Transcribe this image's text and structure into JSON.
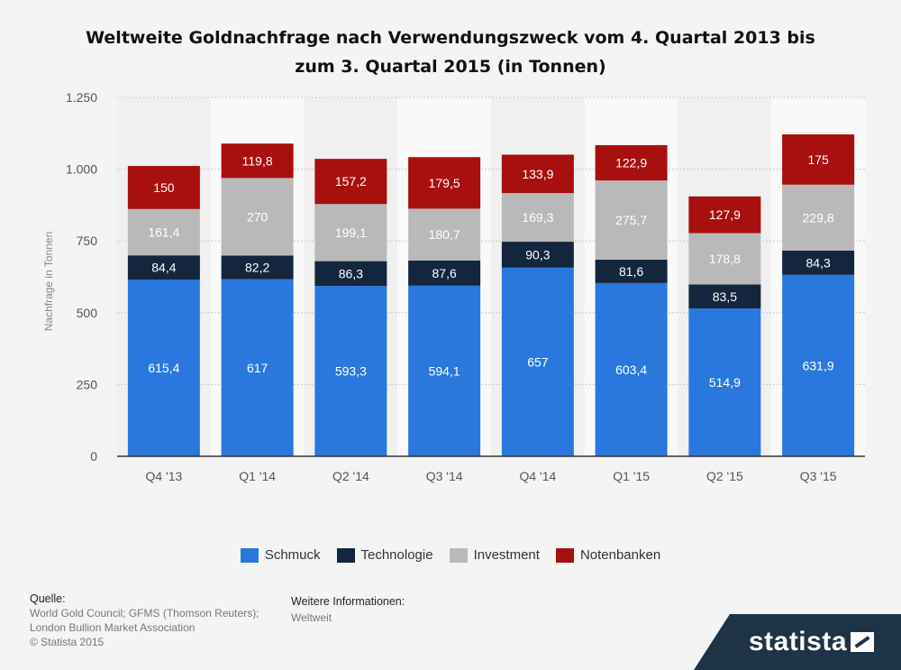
{
  "chart_data": {
    "type": "bar",
    "stacked": true,
    "title": "Weltweite Goldnachfrage nach Verwendungszweck vom 4. Quartal 2013 bis zum 3. Quartal 2015 (in Tonnen)",
    "title_line1": "Weltweite Goldnachfrage nach Verwendungszweck vom 4. Quartal 2013 bis",
    "title_line2": "zum 3. Quartal 2015 (in Tonnen)",
    "xlabel": "",
    "ylabel": "Nachfrage in Tonnen",
    "ylim": [
      0,
      1250
    ],
    "yticks": [
      0,
      250,
      500,
      750,
      1000,
      1250
    ],
    "ytick_labels": [
      "0",
      "250",
      "500",
      "750",
      "1.000",
      "1.250"
    ],
    "grid": true,
    "legend_position": "bottom",
    "categories": [
      "Q4 '13",
      "Q1 '14",
      "Q2 '14",
      "Q3 '14",
      "Q4 '14",
      "Q1 '15",
      "Q2 '15",
      "Q3 '15"
    ],
    "series": [
      {
        "name": "Schmuck",
        "color": "#2a78dd",
        "values": [
          615.4,
          617,
          593.3,
          594.1,
          657,
          603.4,
          514.9,
          631.9
        ],
        "labels": [
          "615,4",
          "617",
          "593,3",
          "594,1",
          "657",
          "603,4",
          "514,9",
          "631,9"
        ]
      },
      {
        "name": "Technologie",
        "color": "#13263d",
        "values": [
          84.4,
          82.2,
          86.3,
          87.6,
          90.3,
          81.6,
          83.5,
          84.3
        ],
        "labels": [
          "84,4",
          "82,2",
          "86,3",
          "87,6",
          "90,3",
          "81,6",
          "83,5",
          "84,3"
        ]
      },
      {
        "name": "Investment",
        "color": "#b9b9b9",
        "values": [
          161.4,
          270,
          199.1,
          180.7,
          169.3,
          275.7,
          178.8,
          229.8
        ],
        "labels": [
          "161,4",
          "270",
          "199,1",
          "180,7",
          "169,3",
          "275,7",
          "178,8",
          "229,8"
        ]
      },
      {
        "name": "Notenbanken",
        "color": "#a80f0f",
        "values": [
          150,
          119.8,
          157.2,
          179.5,
          133.9,
          122.9,
          127.9,
          175
        ],
        "labels": [
          "150",
          "119,8",
          "157,2",
          "179,5",
          "133,9",
          "122,9",
          "127,9",
          "175"
        ]
      }
    ]
  },
  "footer": {
    "source_heading": "Quelle:",
    "source_line1": "World Gold Council; GFMS (Thomson Reuters);",
    "source_line2": "London Bullion Market Association",
    "source_line3": "© Statista 2015",
    "info_heading": "Weitere Informationen:",
    "info_value": "Weltweit"
  },
  "brand": {
    "name": "statista",
    "icon": "statista-logo-icon"
  }
}
